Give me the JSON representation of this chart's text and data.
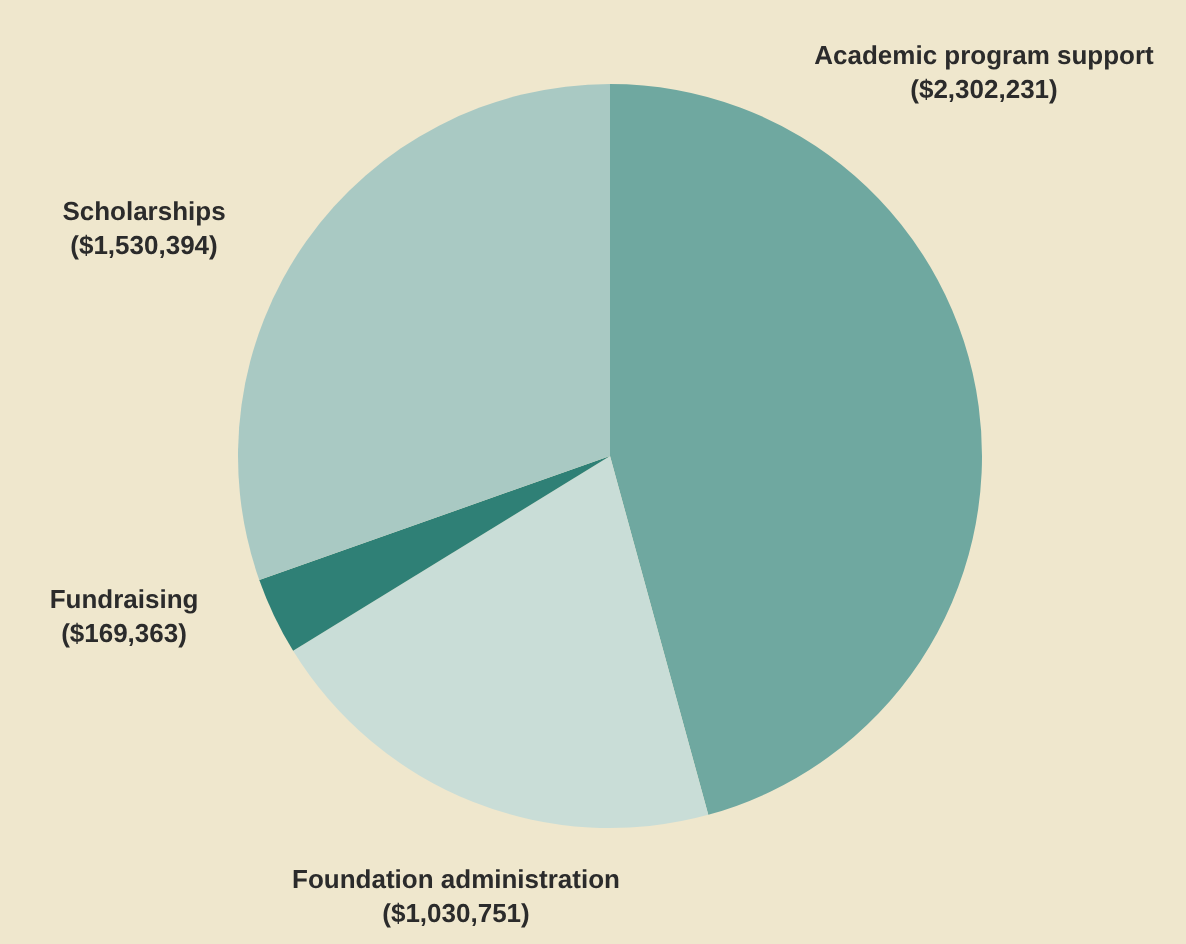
{
  "chart_data": {
    "type": "pie",
    "categories": [
      "Academic program support",
      "Foundation administration",
      "Fundraising",
      "Scholarships"
    ],
    "values": [
      2302231,
      1030751,
      169363,
      1530394
    ],
    "value_labels": [
      "($2,302,231)",
      "($1,030,751)",
      "($169,363)",
      "($1,530,394)"
    ],
    "colors": [
      "#6fa8a0",
      "#c9ddd7",
      "#2f8076",
      "#a9c9c3"
    ]
  }
}
